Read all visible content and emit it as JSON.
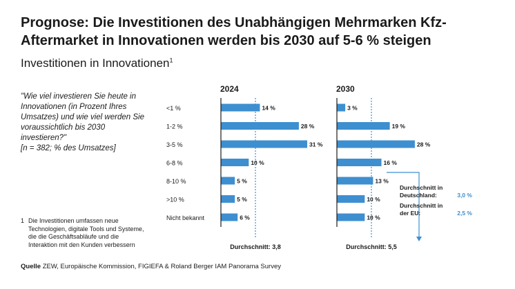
{
  "title": "Prognose: Die Investitionen des Unabhängigen Mehrmarken Kfz-Aftermarket in Innovationen werden bis 2030 auf 5-6 % steigen",
  "subtitle": "Investitionen in Innovationen",
  "subtitle_footnote_mark": "1",
  "question": "\"Wie viel investieren Sie heute in Innovationen (in Prozent Ihres Umsatzes) und wie viel werden Sie voraussicht­lich bis 2030 investieren?\"",
  "question_n": "[n = 382; % des Umsatzes]",
  "footnote_number": "1",
  "footnote_text": "Die Investitionen umfassen neue Technologien, digitale Tools und Systeme, die die Geschäftsabläufe und die Interaktion mit den Kunden verbessern",
  "source_label": "Quelle",
  "source_text": "ZEW, Europäische Kommission, FIGIEFA & Roland Berger IAM Panorama Survey",
  "colors": {
    "bar": "#3d8fd0",
    "axis": "#1a1a1a",
    "avg_line": "#3d8fd0",
    "text": "#1a1a1a"
  },
  "chart_data": {
    "type": "bar",
    "orientation": "horizontal",
    "categories": [
      "<1 %",
      "1-2 %",
      "3-5 %",
      "6-8 %",
      "8-10 %",
      ">10 %",
      "Nicht bekannt"
    ],
    "xlim": [
      0,
      31
    ],
    "series": [
      {
        "name": "2024",
        "values": [
          14,
          28,
          31,
          10,
          5,
          5,
          6
        ],
        "labels": [
          "14 %",
          "28 %",
          "31 %",
          "10 %",
          "5 %",
          "5 %",
          "6 %"
        ],
        "average_label": "Durchschnitt: 3,8",
        "average_value": 3.8
      },
      {
        "name": "2030",
        "values": [
          3,
          19,
          28,
          16,
          13,
          10,
          10
        ],
        "labels": [
          "3 %",
          "19 %",
          "28 %",
          "16 %",
          "13 %",
          "10 %",
          "10 %"
        ],
        "average_label": "Durchschnitt: 5,5",
        "average_value": 5.5
      }
    ],
    "callout": {
      "rows": [
        {
          "label_line1": "Durchschnitt in",
          "label_line2": "Deutschland:",
          "value": "3,0 %"
        },
        {
          "label_line1": "Durchschnitt in",
          "label_line2": "der EU:",
          "value": "2,5 %"
        }
      ]
    }
  }
}
